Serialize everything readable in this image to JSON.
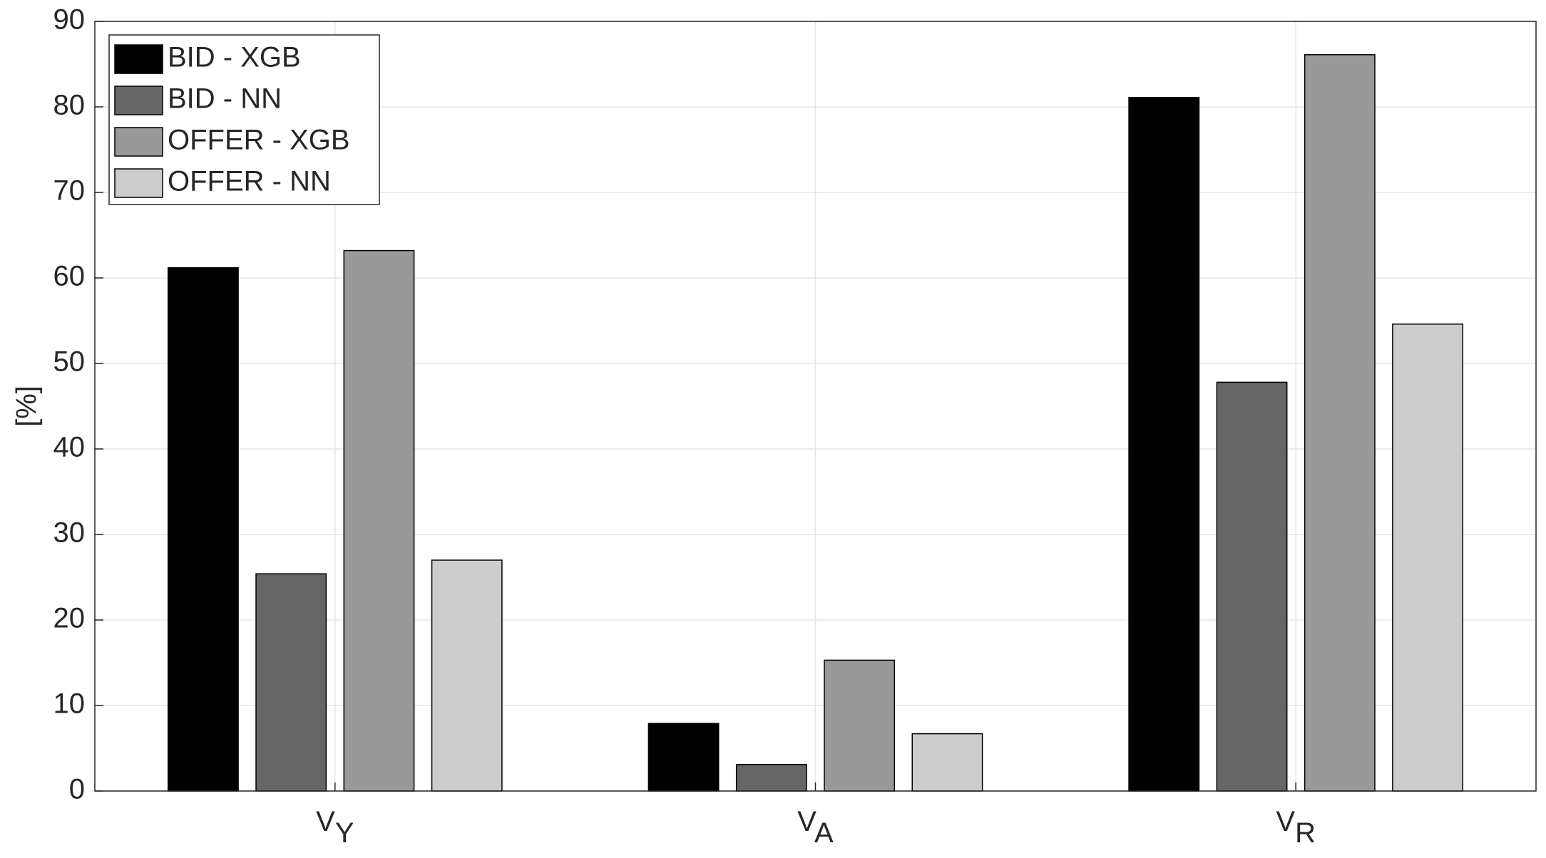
{
  "chart_data": {
    "type": "bar",
    "y_label": "[%]",
    "categories": [
      [
        "V",
        "Y"
      ],
      [
        "V",
        "A"
      ],
      [
        "V",
        "R"
      ]
    ],
    "series": [
      {
        "name": "BID - XGB",
        "color": "#000000",
        "values": [
          61.2,
          7.9,
          81.1
        ]
      },
      {
        "name": "BID - NN",
        "color": "#666666",
        "values": [
          25.4,
          3.1,
          47.8
        ]
      },
      {
        "name": "OFFER - XGB",
        "color": "#999999",
        "values": [
          63.2,
          15.3,
          86.1
        ]
      },
      {
        "name": "OFFER - NN",
        "color": "#cccccc",
        "values": [
          27.0,
          6.7,
          54.6
        ]
      }
    ],
    "ylim": [
      0,
      90
    ],
    "yticks": [
      0,
      10,
      20,
      30,
      40,
      50,
      60,
      70,
      80,
      90
    ],
    "grid": true,
    "legend": "upper-left"
  }
}
